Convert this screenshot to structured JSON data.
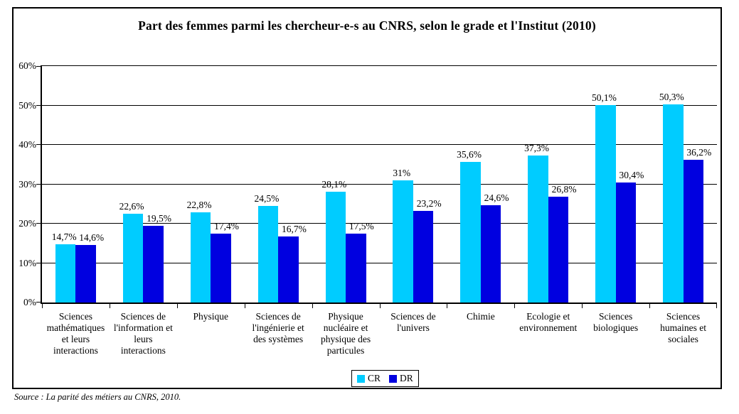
{
  "title": "Part des femmes parmi les chercheur-e-s au CNRS, selon le grade et l'Institut (2010)",
  "source_note": "Source : La parité des métiers au CNRS, 2010.",
  "legend": {
    "items": [
      {
        "label": "CR",
        "color": "#00CCFF"
      },
      {
        "label": "DR",
        "color": "#0000E0"
      }
    ]
  },
  "chart_data": {
    "type": "bar",
    "title": "Part des femmes parmi les chercheur-e-s au CNRS, selon le grade et l'Institut (2010)",
    "categories": [
      "Sciences\nmathématiques\net leurs\ninteractions",
      "Sciences de\nl'information et\nleurs\ninteractions",
      "Physique",
      "Sciences de\nl'ingénierie et\ndes systèmes",
      "Physique\nnucléaire et\nphysique des\nparticules",
      "Sciences de\nl'univers",
      "Chimie",
      "Ecologie et\nenvironnement",
      "Sciences\nbiologiques",
      "Sciences\nhumaines et\nsociales"
    ],
    "series": [
      {
        "name": "CR",
        "color": "#00CCFF",
        "values": [
          14.7,
          22.6,
          22.8,
          24.5,
          28.1,
          31,
          35.6,
          37.3,
          50.1,
          50.3
        ]
      },
      {
        "name": "DR",
        "color": "#0000E0",
        "values": [
          14.6,
          19.5,
          17.4,
          16.7,
          17.5,
          23.2,
          24.6,
          26.8,
          30.4,
          36.2
        ]
      }
    ],
    "value_label_format": "comma-decimal-percent",
    "xlabel": "",
    "ylabel": "",
    "ylim": [
      0,
      60
    ],
    "ytick_step": 10,
    "ytick_suffix": "%",
    "grid": true,
    "legend_position": "bottom"
  }
}
